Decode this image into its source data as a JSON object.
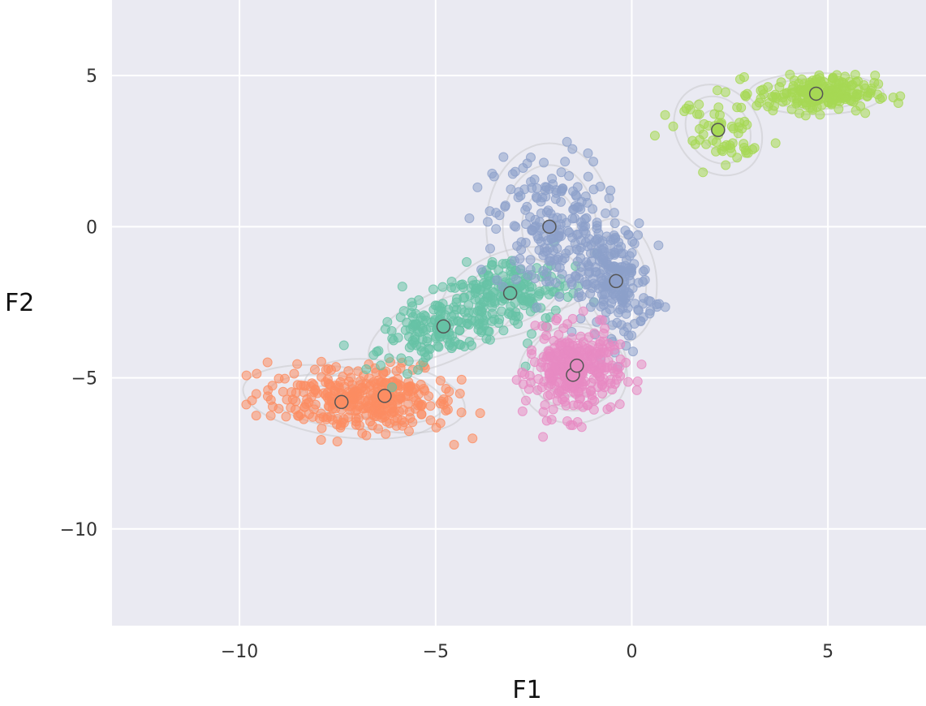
{
  "chart_data": {
    "type": "scatter",
    "title": "",
    "xlabel": "F1",
    "ylabel": "F2",
    "xlim": [
      -13.25,
      7.5
    ],
    "ylim": [
      -13.2,
      7.5
    ],
    "xticks": [
      -10,
      -5,
      0,
      5
    ],
    "yticks": [
      5,
      0,
      -5,
      -10
    ],
    "xtick_labels": [
      "−10",
      "−5",
      "0",
      "5"
    ],
    "ytick_labels": [
      "5",
      "0",
      "−5",
      "−10"
    ],
    "grid": true,
    "background": "#EAEAF2",
    "grid_color": "#FFFFFF",
    "clusters": [
      {
        "color": "#FC8D62",
        "center": [
          -7.4,
          -5.8
        ],
        "spread": [
          1.1,
          0.5
        ],
        "angle": -8,
        "count": 160
      },
      {
        "color": "#FC8D62",
        "center": [
          -6.3,
          -5.6
        ],
        "spread": [
          0.9,
          0.5
        ],
        "angle": -10,
        "count": 180
      },
      {
        "color": "#66C2A5",
        "center": [
          -4.8,
          -3.3
        ],
        "spread": [
          0.9,
          0.5
        ],
        "angle": 25,
        "count": 170
      },
      {
        "color": "#66C2A5",
        "center": [
          -3.1,
          -2.2
        ],
        "spread": [
          0.8,
          0.6
        ],
        "angle": 20,
        "count": 170
      },
      {
        "color": "#8DA0CB",
        "center": [
          -2.1,
          0.0
        ],
        "spread": [
          0.7,
          1.2
        ],
        "angle": 0,
        "count": 200
      },
      {
        "color": "#8DA0CB",
        "center": [
          -0.4,
          -1.8
        ],
        "spread": [
          0.45,
          0.9
        ],
        "angle": 5,
        "count": 210
      },
      {
        "color": "#E78AC3",
        "center": [
          -1.5,
          -4.9
        ],
        "spread": [
          0.6,
          0.7
        ],
        "angle": 0,
        "count": 160
      },
      {
        "color": "#E78AC3",
        "center": [
          -1.4,
          -4.6
        ],
        "spread": [
          0.55,
          0.6
        ],
        "angle": 10,
        "count": 160
      },
      {
        "color": "#A6D854",
        "center": [
          2.2,
          3.2
        ],
        "spread": [
          0.45,
          0.7
        ],
        "angle": 40,
        "count": 60
      },
      {
        "color": "#A6D854",
        "center": [
          4.7,
          4.4
        ],
        "spread": [
          0.75,
          0.3
        ],
        "angle": 0,
        "count": 200
      }
    ]
  }
}
